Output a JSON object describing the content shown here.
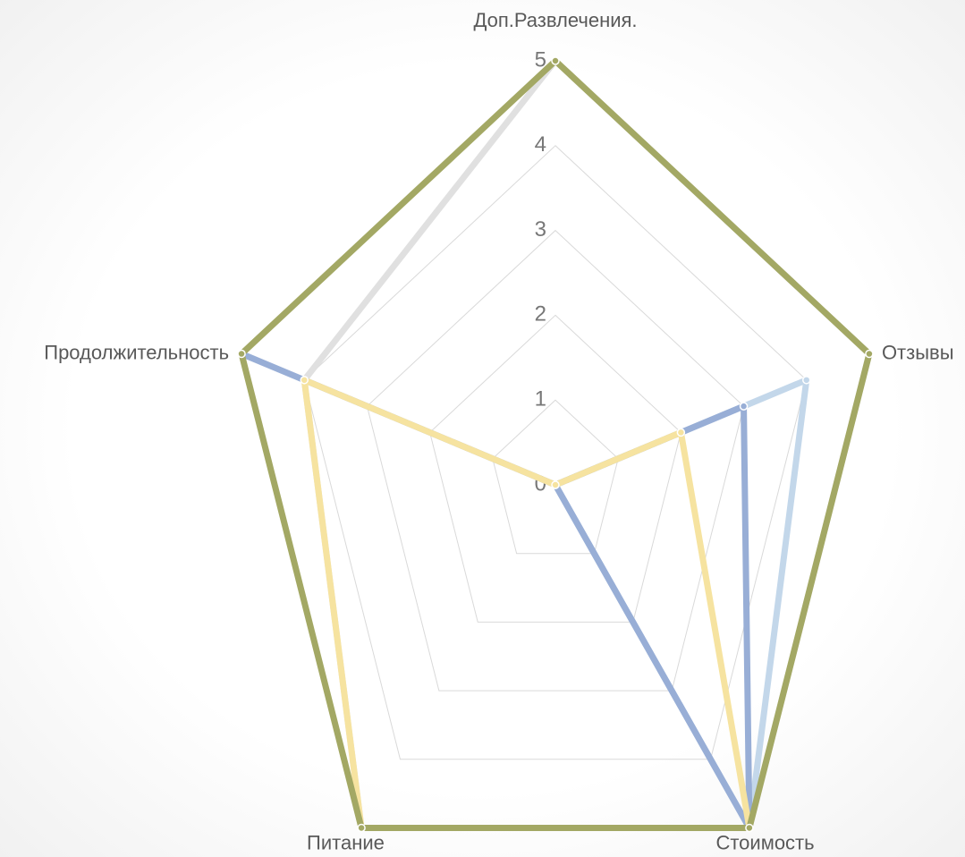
{
  "chart_data": {
    "type": "radar",
    "categories": [
      "Доп.Развлечения.",
      "Отзывы",
      "Стоимость",
      "Питание",
      "Продолжительность"
    ],
    "ylim": [
      0,
      5
    ],
    "yticks": [
      0,
      1,
      2,
      3,
      4,
      5
    ],
    "grid": true,
    "series": [
      {
        "color": "#e0e0e0",
        "values": [
          5,
          5,
          5,
          5,
          4
        ]
      },
      {
        "color": "#c3d7ea",
        "values": [
          0,
          4,
          5,
          0,
          0
        ]
      },
      {
        "color": "#98aed6",
        "values": [
          0,
          3,
          5,
          0,
          5
        ]
      },
      {
        "color": "#f6e3a0",
        "values": [
          0,
          2,
          5,
          5,
          4
        ]
      },
      {
        "color": "#a3a864",
        "values": [
          5,
          5,
          5,
          5,
          5
        ]
      }
    ]
  }
}
